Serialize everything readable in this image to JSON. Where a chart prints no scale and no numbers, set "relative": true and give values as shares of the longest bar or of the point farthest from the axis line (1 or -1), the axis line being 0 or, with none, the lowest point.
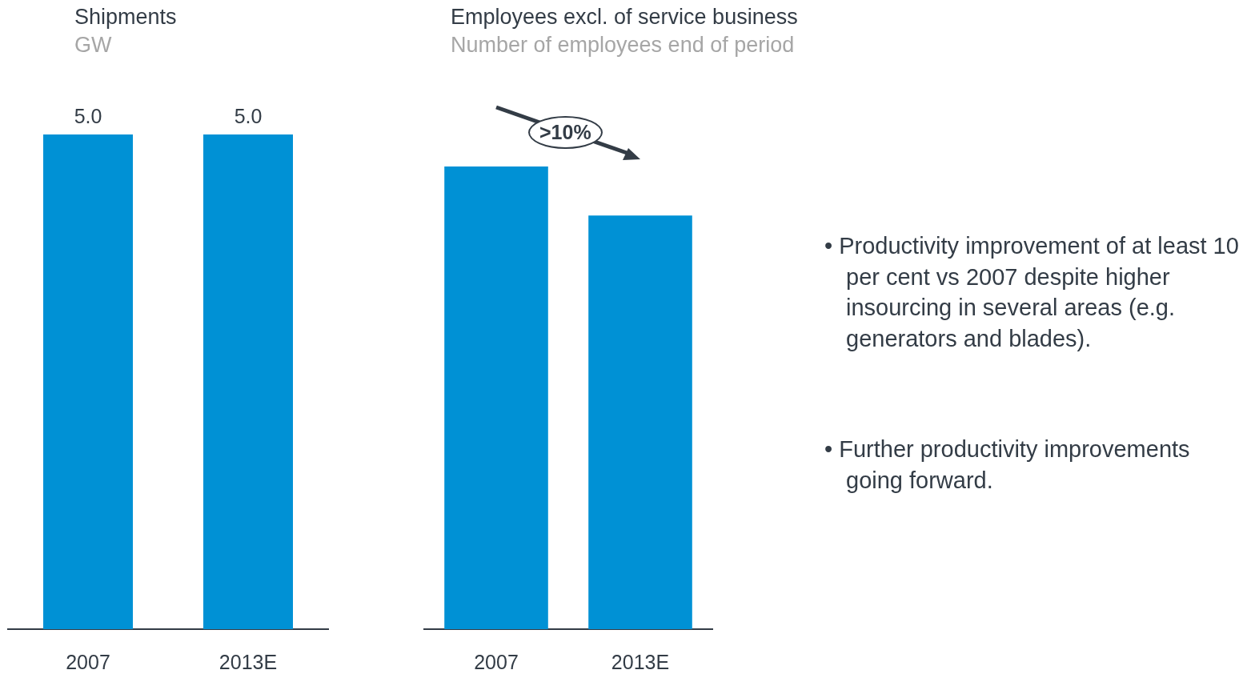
{
  "chart_data": [
    {
      "type": "bar",
      "title": "Shipments",
      "subtitle": "GW",
      "categories": [
        "2007",
        "2013E"
      ],
      "values": [
        5.0,
        5.0
      ],
      "value_labels": [
        "5.0",
        "5.0"
      ],
      "color": "#0091d5",
      "grid": false,
      "legend": false
    },
    {
      "type": "bar",
      "title": "Employees excl. of service business",
      "subtitle": "Number of employees end of period",
      "categories": [
        "2007",
        "2013E"
      ],
      "values": [
        1,
        0.894
      ],
      "relative": true,
      "color": "#0091d5",
      "grid": false,
      "legend": false,
      "annotations": [
        ">10%"
      ]
    },
    {
      "type": "other",
      "annotations": [
        "• Productivity improvement of at least 10 per cent vs 2007 despite higher insourcing in several areas (e.g. generators and blades).",
        "• Further productivity improvements going forward."
      ]
    }
  ]
}
